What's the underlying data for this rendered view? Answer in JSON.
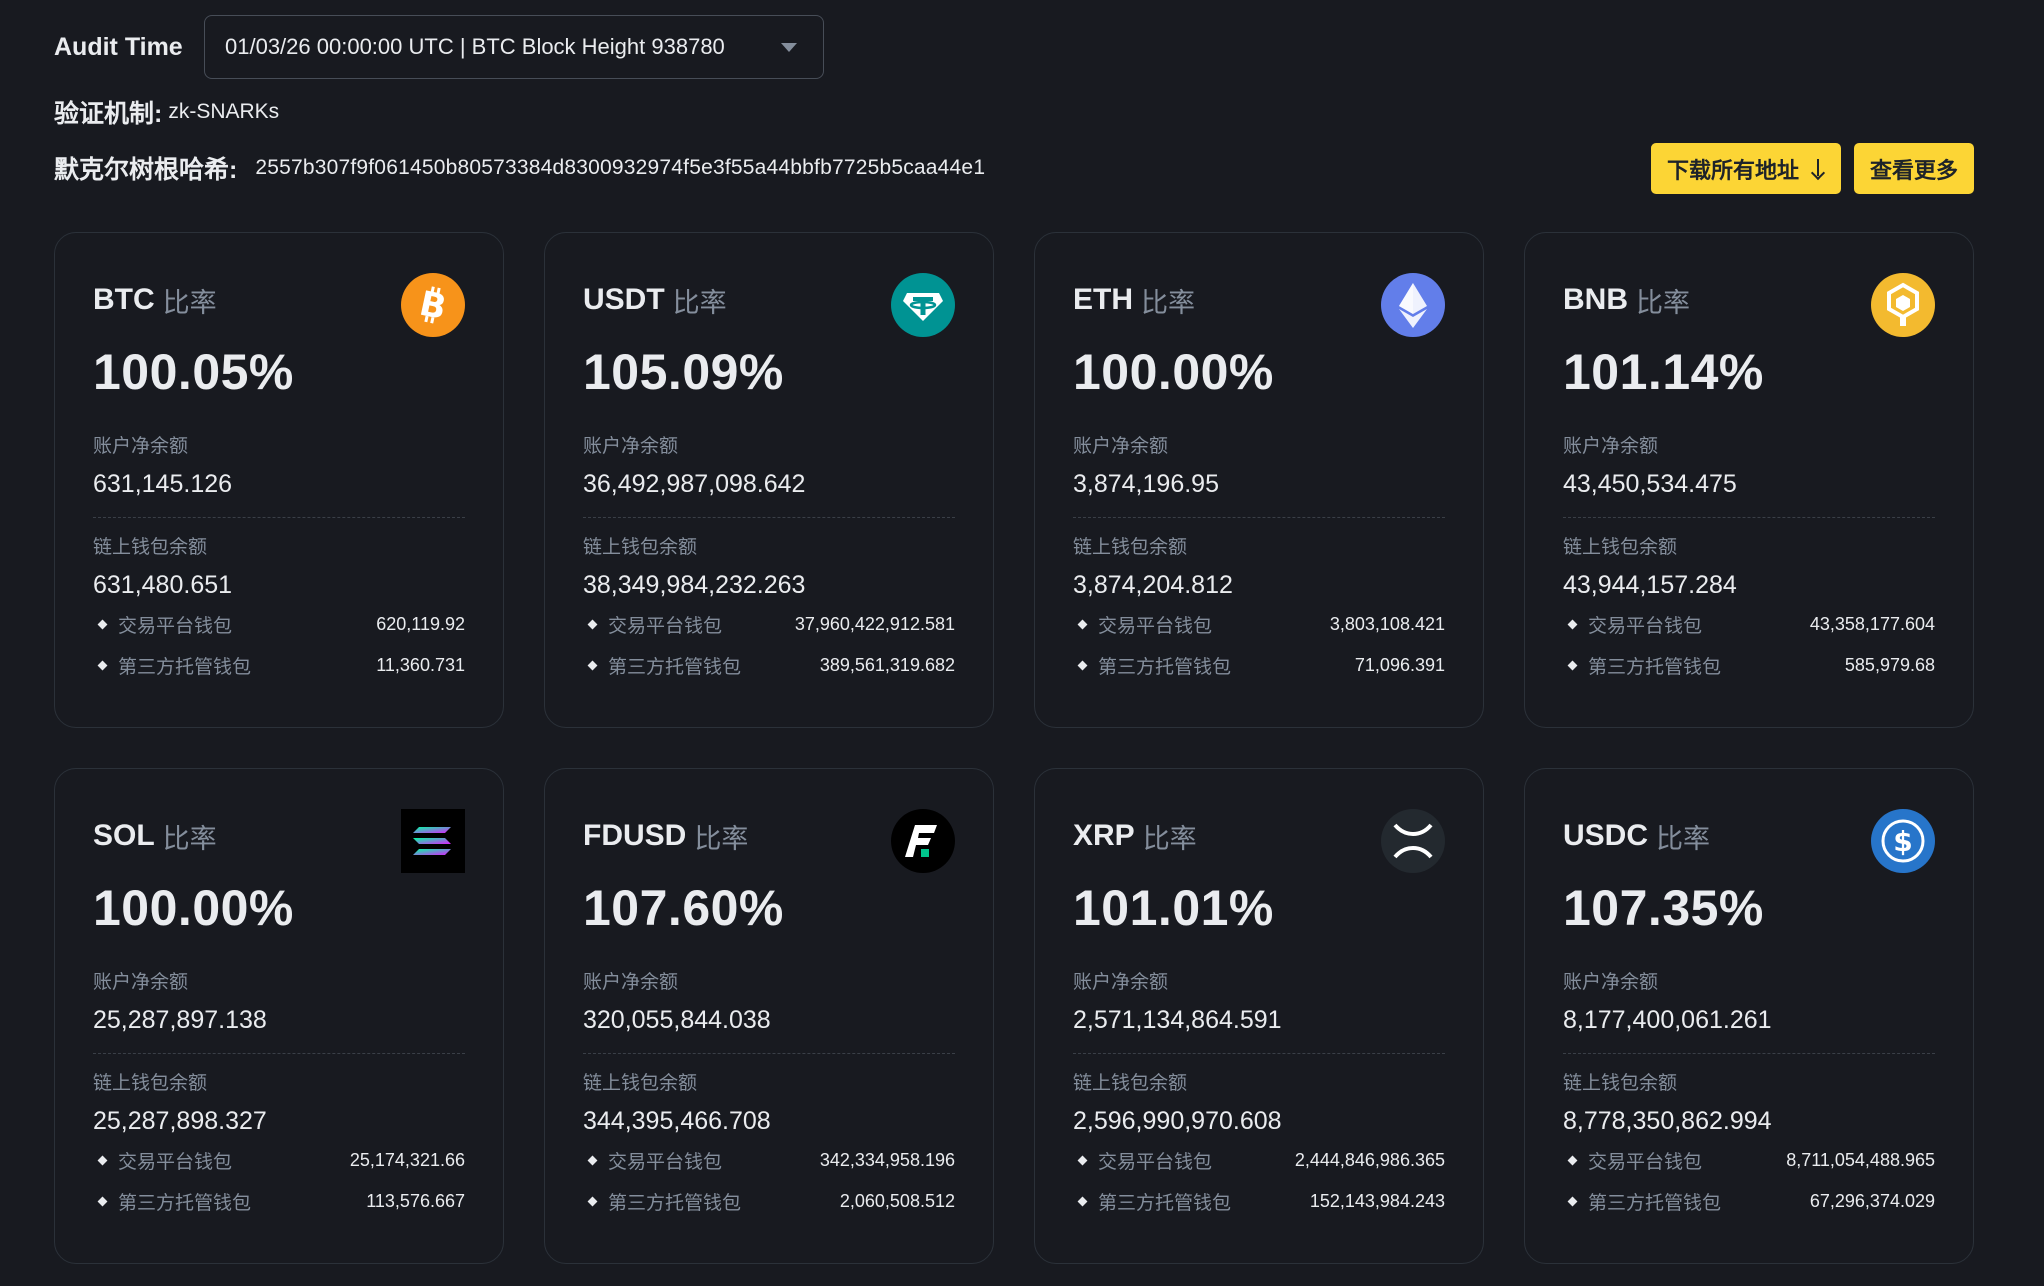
{
  "audit": {
    "label": "Audit Time",
    "selected": "01/03/26 00:00:00 UTC | BTC Block Height 938780"
  },
  "mechanism": {
    "label": "验证机制:",
    "value": "zk-SNARKs"
  },
  "merkle": {
    "label": "默克尔树根哈希:",
    "value": "2557b307f9f061450b80573384d8300932974f5e3f55a44bbfb7725b5caa44e1"
  },
  "buttons": {
    "download": "下载所有地址",
    "more": "查看更多"
  },
  "labels": {
    "ratio": "比率",
    "net_balance": "账户净余额",
    "chain_balance": "链上钱包余额",
    "exchange_wallet": "交易平台钱包",
    "custody_wallet": "第三方托管钱包"
  },
  "cards": [
    {
      "coin": "BTC",
      "ratio": "100.05%",
      "net": "631,145.126",
      "chain": "631,480.651",
      "exchange": "620,119.92",
      "custody": "11,360.731",
      "icon": "bitcoin-icon",
      "color": "#f7931a"
    },
    {
      "coin": "USDT",
      "ratio": "105.09%",
      "net": "36,492,987,098.642",
      "chain": "38,349,984,232.263",
      "exchange": "37,960,422,912.581",
      "custody": "389,561,319.682",
      "icon": "tether-icon",
      "color": "#009393"
    },
    {
      "coin": "ETH",
      "ratio": "100.00%",
      "net": "3,874,196.95",
      "chain": "3,874,204.812",
      "exchange": "3,803,108.421",
      "custody": "71,096.391",
      "icon": "ethereum-icon",
      "color": "#627eea"
    },
    {
      "coin": "BNB",
      "ratio": "101.14%",
      "net": "43,450,534.475",
      "chain": "43,944,157.284",
      "exchange": "43,358,177.604",
      "custody": "585,979.68",
      "icon": "bnb-icon",
      "color": "#f3ba2f"
    },
    {
      "coin": "SOL",
      "ratio": "100.00%",
      "net": "25,287,897.138",
      "chain": "25,287,898.327",
      "exchange": "25,174,321.66",
      "custody": "113,576.667",
      "icon": "solana-icon",
      "color": "#000000"
    },
    {
      "coin": "FDUSD",
      "ratio": "107.60%",
      "net": "320,055,844.038",
      "chain": "344,395,466.708",
      "exchange": "342,334,958.196",
      "custody": "2,060,508.512",
      "icon": "fdusd-icon",
      "color": "#000000"
    },
    {
      "coin": "XRP",
      "ratio": "101.01%",
      "net": "2,571,134,864.591",
      "chain": "2,596,990,970.608",
      "exchange": "2,444,846,986.365",
      "custody": "152,143,984.243",
      "icon": "xrp-icon",
      "color": "#23292f"
    },
    {
      "coin": "USDC",
      "ratio": "107.35%",
      "net": "8,177,400,061.261",
      "chain": "8,778,350,862.994",
      "exchange": "8,711,054,488.965",
      "custody": "67,296,374.029",
      "icon": "usdc-icon",
      "color": "#2775ca"
    }
  ]
}
